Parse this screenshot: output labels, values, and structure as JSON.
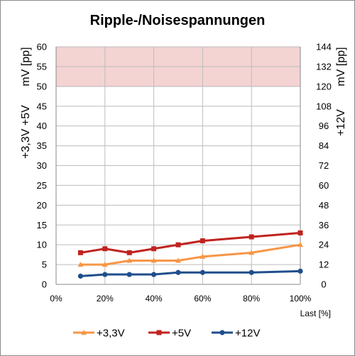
{
  "chart_data": {
    "type": "line",
    "title": "Ripple-/Noisespannungen",
    "xlabel": "Last [%]",
    "ylabel_left": [
      "+3,3V  +5V",
      "mV [pp]"
    ],
    "ylabel_right": [
      "+12V",
      "mV [pp]"
    ],
    "ylim_left": [
      0,
      60
    ],
    "ylim_right": [
      0,
      144
    ],
    "left_ticks": [
      "0",
      "5",
      "10",
      "15",
      "20",
      "25",
      "30",
      "35",
      "40",
      "45",
      "50",
      "55",
      "60"
    ],
    "right_ticks": [
      "0",
      "12",
      "24",
      "36",
      "48",
      "60",
      "72",
      "84",
      "96",
      "108",
      "120",
      "132",
      "144"
    ],
    "x_ticks": [
      "0%",
      "20%",
      "40%",
      "60%",
      "80%",
      "100%"
    ],
    "xlim": [
      0,
      100
    ],
    "limit_band_left": [
      50,
      60
    ],
    "grid": true,
    "legend": "bottom",
    "series": [
      {
        "name": "+3,3V",
        "axis": "left",
        "color": "#f79646",
        "marker": "triangle",
        "x": [
          10,
          20,
          30,
          40,
          50,
          60,
          80,
          100
        ],
        "values": [
          5,
          5,
          6,
          6,
          6,
          7,
          8,
          10
        ]
      },
      {
        "name": "+5V",
        "axis": "left",
        "color": "#c0231f",
        "marker": "square",
        "x": [
          10,
          20,
          30,
          40,
          50,
          60,
          80,
          100
        ],
        "values": [
          8,
          9,
          8,
          9,
          10,
          11,
          12,
          13
        ]
      },
      {
        "name": "+12V",
        "axis": "right",
        "color": "#1f4e8c",
        "marker": "circle",
        "x": [
          10,
          20,
          30,
          40,
          50,
          60,
          80,
          100
        ],
        "values": [
          5,
          6,
          6,
          6,
          7.2,
          7.2,
          7.2,
          8
        ]
      }
    ],
    "colors": {
      "band": "#f4d3d3",
      "band_edge": "#d89a9a",
      "grid": "#bdbdbd",
      "axis": "#8a8a8a",
      "text": "#000000"
    }
  }
}
